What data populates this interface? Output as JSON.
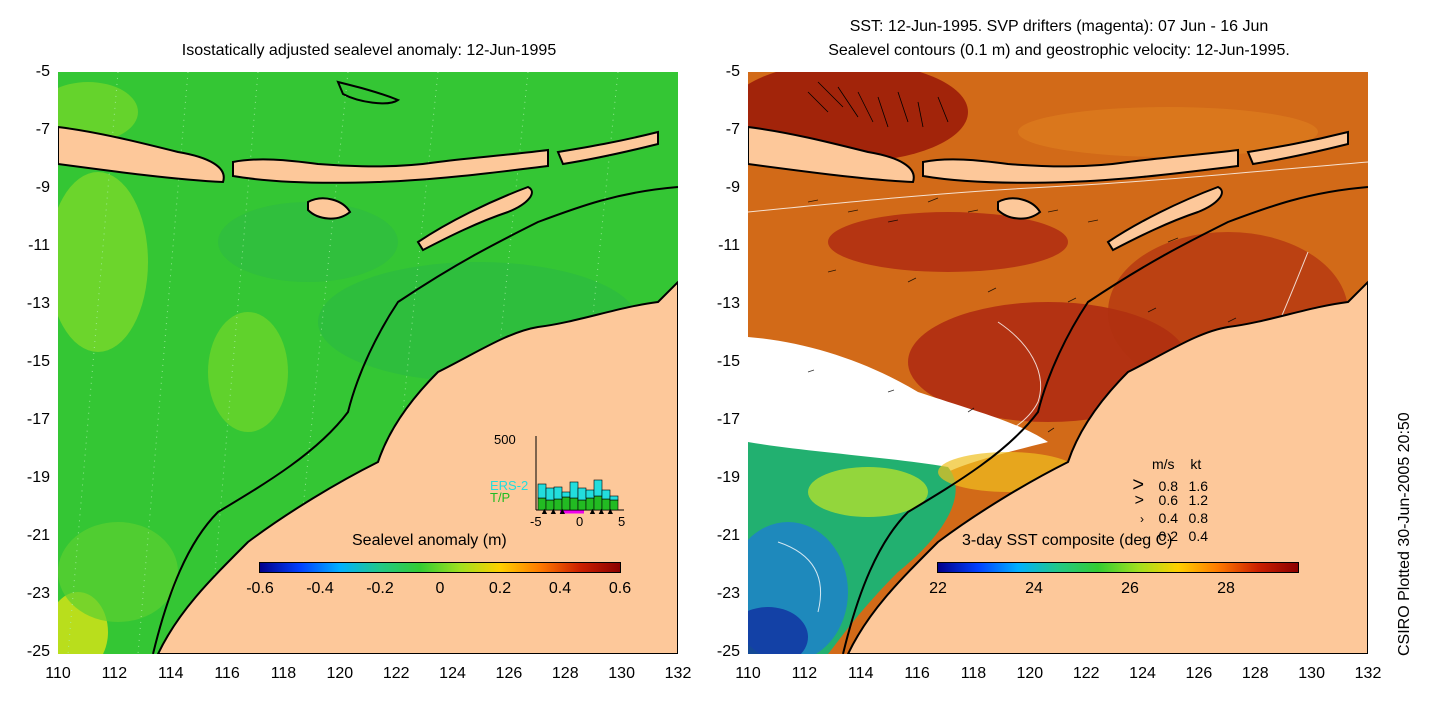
{
  "left_panel": {
    "title": "Isostatically adjusted sealevel anomaly: 12-Jun-1995",
    "colorbar_label": "Sealevel anomaly (m)",
    "colorbar_ticks": [
      "-0.6",
      "-0.4",
      "-0.2",
      "0",
      "0.2",
      "0.4",
      "0.6"
    ],
    "colorbar_range": [
      -0.6,
      0.6
    ],
    "inset": {
      "ymax_label": "500",
      "x_ticks": [
        "-5",
        "0",
        "5"
      ],
      "series": [
        {
          "name": "ERS-2",
          "color": "#22dddd"
        },
        {
          "name": "T/P",
          "color": "#22bb22"
        }
      ]
    }
  },
  "right_panel": {
    "title_line1": "SST: 12-Jun-1995. SVP drifters (magenta): 07 Jun - 16 Jun",
    "title_line2": "Sealevel contours (0.1 m) and geostrophic velocity: 12-Jun-1995.",
    "colorbar_label": "3-day SST composite (deg C)",
    "colorbar_ticks": [
      "22",
      "24",
      "26",
      "28"
    ],
    "colorbar_range": [
      22,
      29.5
    ],
    "velocity_legend": {
      "header_ms": "m/s",
      "header_kt": "kt",
      "rows": [
        {
          "ms": "0.8",
          "kt": "1.6"
        },
        {
          "ms": "0.6",
          "kt": "1.2"
        },
        {
          "ms": "0.4",
          "kt": "0.8"
        },
        {
          "ms": "0.2",
          "kt": "0.4"
        }
      ]
    }
  },
  "axes": {
    "lat_ticks": [
      "-5",
      "-7",
      "-9",
      "-11",
      "-13",
      "-15",
      "-17",
      "-19",
      "-21",
      "-23",
      "-25"
    ],
    "lon_ticks": [
      "110",
      "112",
      "114",
      "116",
      "118",
      "120",
      "122",
      "124",
      "126",
      "128",
      "130",
      "132"
    ],
    "lat_range": [
      -25,
      -5
    ],
    "lon_range": [
      110,
      132
    ]
  },
  "credit": "CSIRO Plotted 30-Jun-2005 20:50",
  "colors": {
    "land": "#fdc89a",
    "ocean_sla": "#33cc33",
    "sst_warm": "#cc4400",
    "cloud": "#ffffff"
  }
}
